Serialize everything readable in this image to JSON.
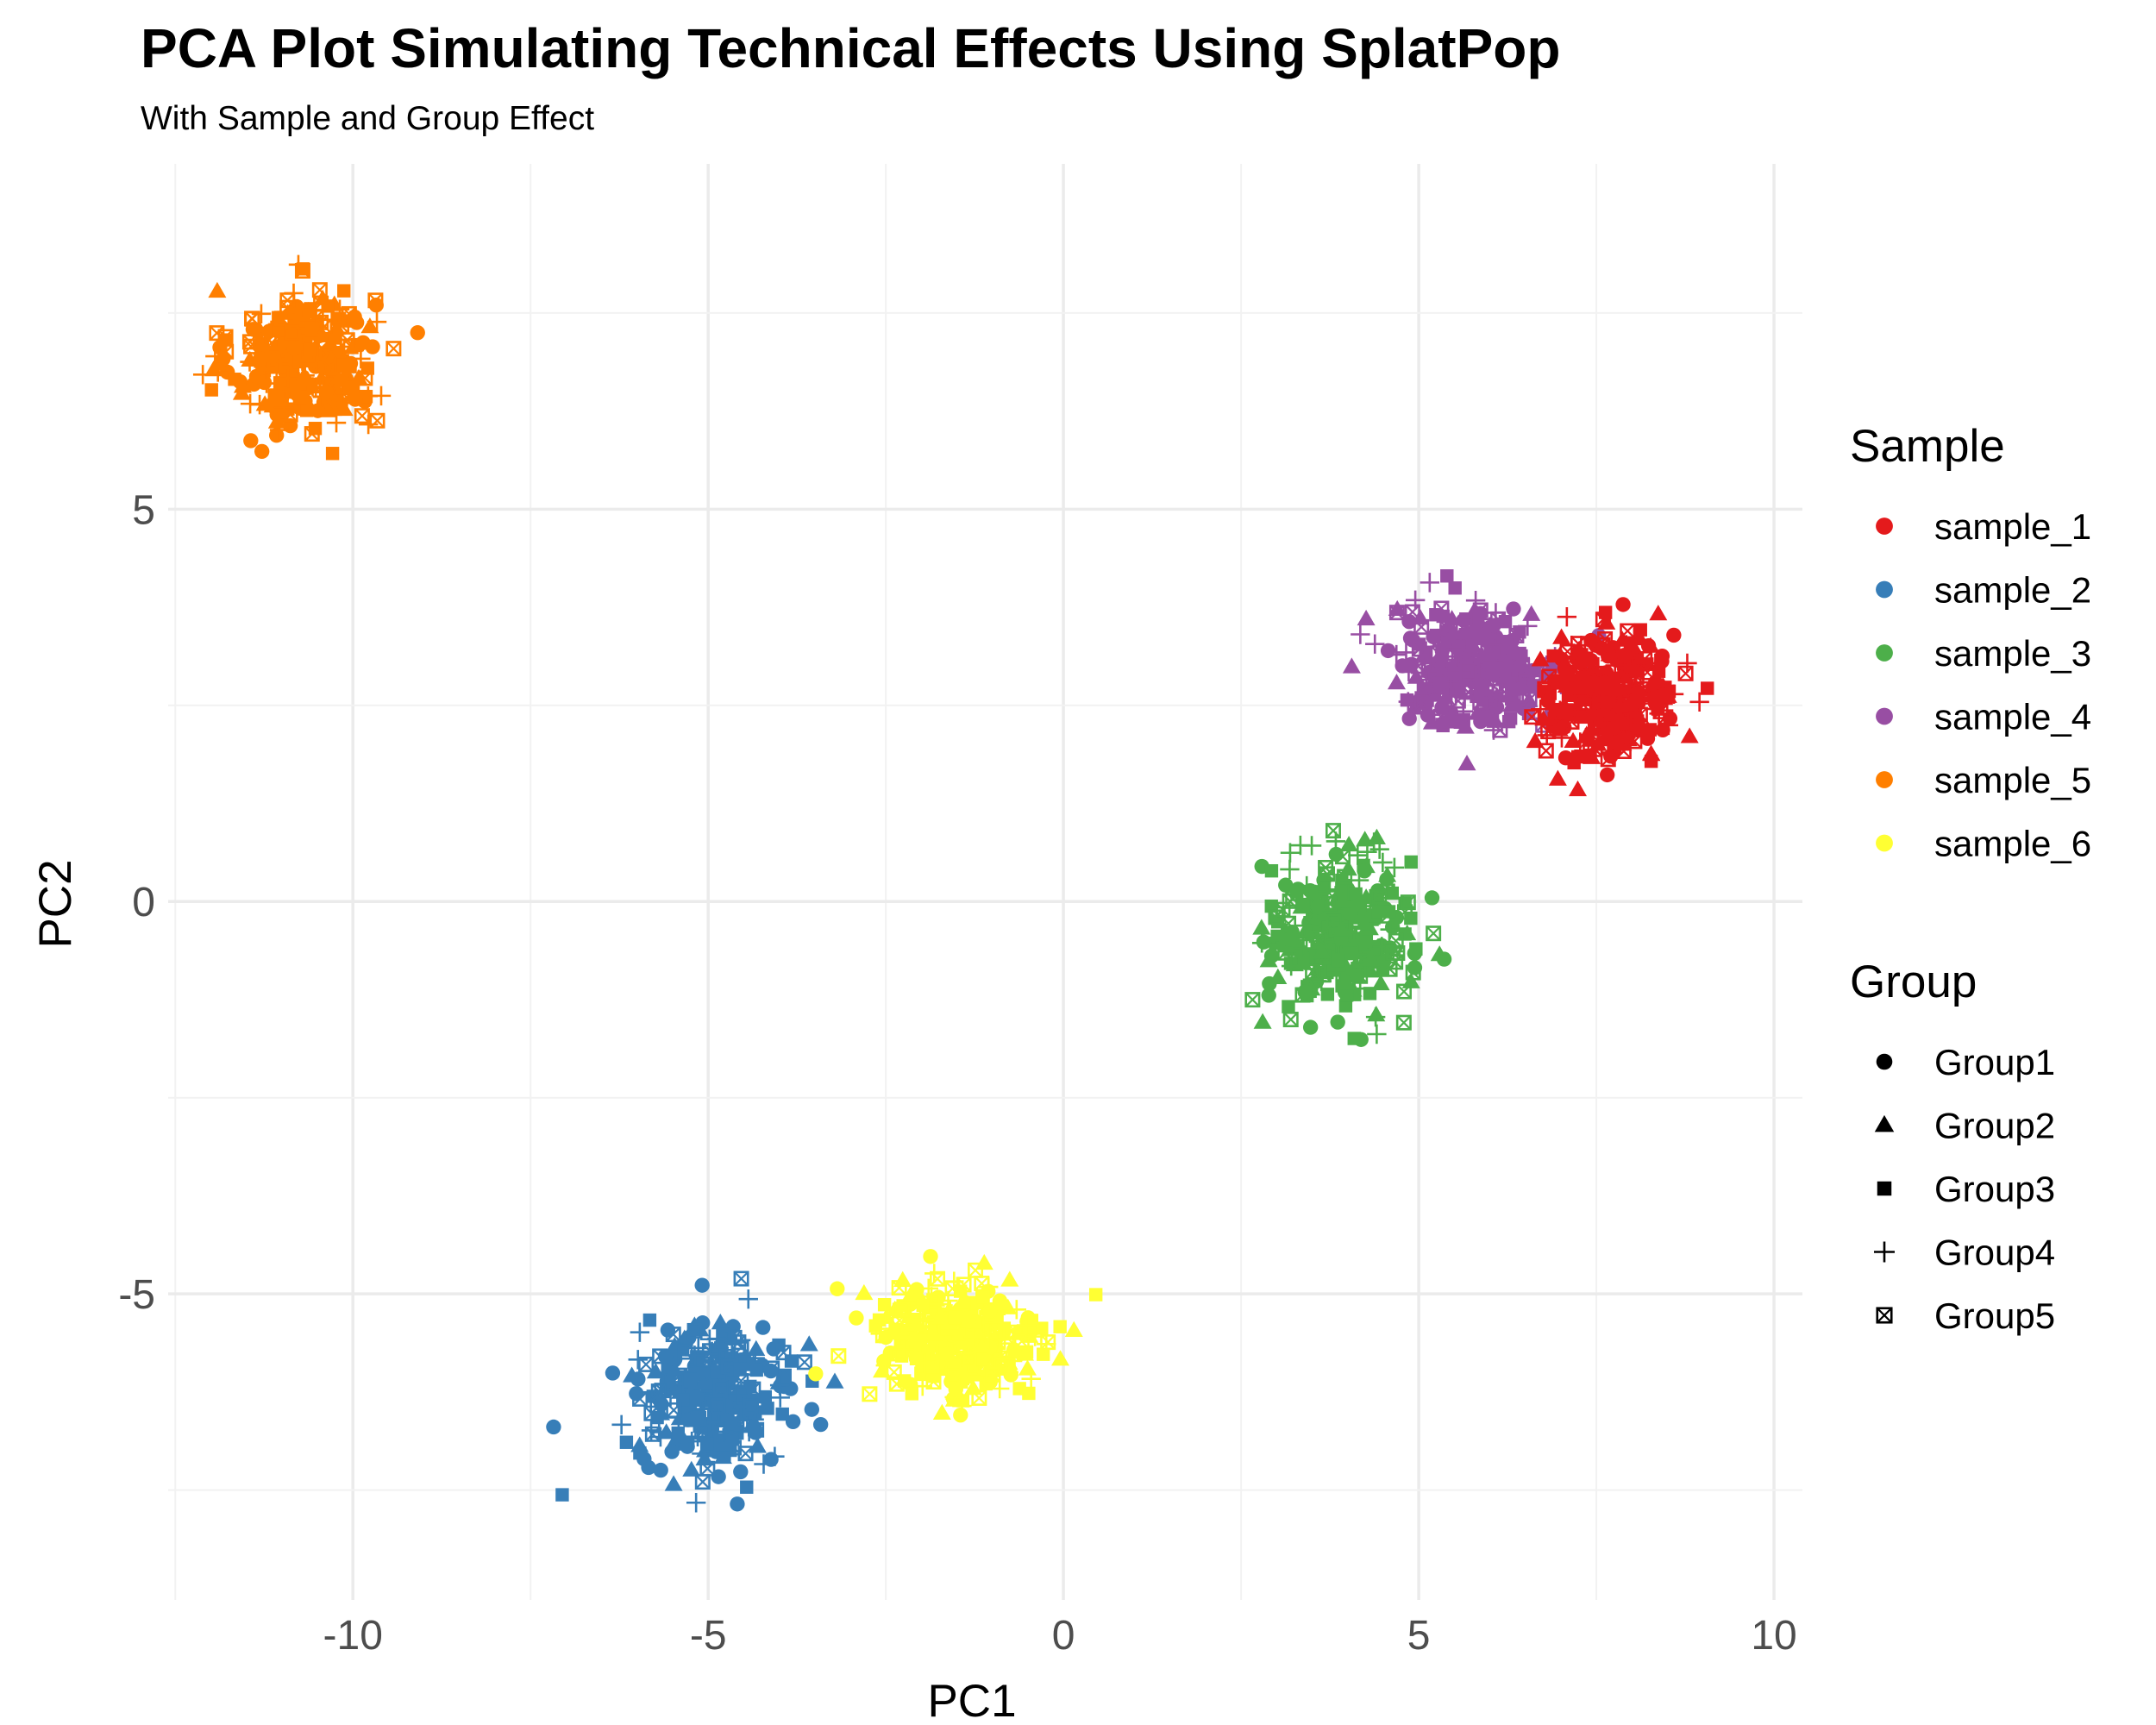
{
  "chart_data": {
    "type": "scatter",
    "title": "PCA Plot Simulating Technical Effects Using SplatPop",
    "subtitle": "With Sample and Group Effect",
    "xlabel": "PC1",
    "ylabel": "PC2",
    "xlim": [
      -12.6,
      10.4
    ],
    "ylim": [
      -8.9,
      9.4
    ],
    "xticks": [
      -10,
      -5,
      0,
      5,
      10
    ],
    "yticks": [
      -5,
      0,
      5
    ],
    "xtick_labels": [
      "-10",
      "-5",
      "0",
      "5",
      "10"
    ],
    "ytick_labels": [
      "-5",
      "0",
      "5"
    ],
    "grid": true,
    "legend_position": "right",
    "legends": [
      {
        "title": "Sample",
        "kind": "color",
        "entries": [
          {
            "label": "sample_1",
            "color": "#e41a1c"
          },
          {
            "label": "sample_2",
            "color": "#377eb8"
          },
          {
            "label": "sample_3",
            "color": "#4daf4a"
          },
          {
            "label": "sample_4",
            "color": "#984ea3"
          },
          {
            "label": "sample_5",
            "color": "#ff7f00"
          },
          {
            "label": "sample_6",
            "color": "#ffff33"
          }
        ]
      },
      {
        "title": "Group",
        "kind": "shape",
        "entries": [
          {
            "label": "Group1",
            "shape": "circle"
          },
          {
            "label": "Group2",
            "shape": "triangle"
          },
          {
            "label": "Group3",
            "shape": "square"
          },
          {
            "label": "Group4",
            "shape": "plus"
          },
          {
            "label": "Group5",
            "shape": "boxed-x"
          }
        ]
      }
    ],
    "clusters": [
      {
        "sample": "sample_5",
        "color": "#ff7f00",
        "center": [
          -10.7,
          6.9
        ],
        "sd": [
          0.5,
          0.45
        ]
      },
      {
        "sample": "sample_4",
        "color": "#984ea3",
        "center": [
          5.8,
          3.0
        ],
        "sd": [
          0.6,
          0.38
        ]
      },
      {
        "sample": "sample_1",
        "color": "#e41a1c",
        "center": [
          7.7,
          2.6
        ],
        "sd": [
          0.48,
          0.42
        ]
      },
      {
        "sample": "sample_3",
        "color": "#4daf4a",
        "center": [
          3.9,
          -0.4
        ],
        "sd": [
          0.5,
          0.5
        ]
      },
      {
        "sample": "sample_2",
        "color": "#377eb8",
        "center": [
          -4.9,
          -6.3
        ],
        "sd": [
          0.55,
          0.45
        ]
      },
      {
        "sample": "sample_6",
        "color": "#ffff33",
        "center": [
          -1.5,
          -5.6
        ],
        "sd": [
          0.62,
          0.42
        ]
      }
    ]
  }
}
